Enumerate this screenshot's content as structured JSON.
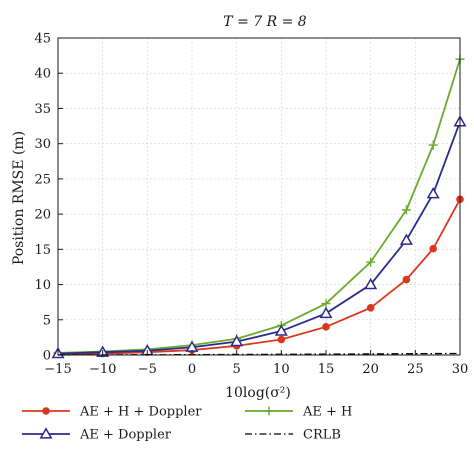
{
  "chart_data": {
    "type": "line",
    "title": "T = 7 R = 8",
    "xlabel": "10log(σ²)",
    "ylabel": "Position RMSE (m)",
    "xlim": [
      -15,
      30
    ],
    "ylim": [
      0,
      45
    ],
    "x_ticks": [
      -15,
      -10,
      -5,
      0,
      5,
      10,
      15,
      20,
      25,
      30
    ],
    "y_ticks": [
      0,
      5,
      10,
      15,
      20,
      25,
      30,
      35,
      40,
      45
    ],
    "grid": true,
    "legend": "bottom, two columns",
    "series": [
      {
        "name": "AE + H + Doppler",
        "color": "#d9381e",
        "marker": "circle",
        "dash": "solid",
        "x": [
          -15,
          -10,
          -5,
          0,
          5,
          10,
          15,
          20,
          24,
          27,
          30
        ],
        "y": [
          0.1,
          0.2,
          0.4,
          0.7,
          1.3,
          2.2,
          4.0,
          6.7,
          10.7,
          15.1,
          22.1
        ]
      },
      {
        "name": "AE + H",
        "color": "#6aaa2e",
        "marker": "plus",
        "dash": "solid",
        "x": [
          -15,
          -10,
          -5,
          0,
          5,
          10,
          15,
          20,
          24,
          27,
          30
        ],
        "y": [
          0.3,
          0.5,
          0.8,
          1.4,
          2.3,
          4.2,
          7.3,
          13.2,
          20.6,
          29.8,
          42.0
        ]
      },
      {
        "name": "AE + Doppler",
        "color": "#2b2b8c",
        "marker": "triangle",
        "dash": "solid",
        "x": [
          -15,
          -10,
          -5,
          0,
          5,
          10,
          15,
          20,
          24,
          27,
          30
        ],
        "y": [
          0.2,
          0.4,
          0.6,
          1.1,
          1.9,
          3.4,
          5.9,
          10.0,
          16.3,
          22.9,
          33.1
        ]
      },
      {
        "name": "CRLB",
        "color": "#000000",
        "marker": "none",
        "dash": "dashdot",
        "x": [
          -15,
          -10,
          -5,
          0,
          5,
          10,
          15,
          20,
          24,
          27,
          30
        ],
        "y": [
          0.01,
          0.02,
          0.03,
          0.05,
          0.08,
          0.1,
          0.12,
          0.15,
          0.18,
          0.2,
          0.22
        ]
      }
    ]
  }
}
